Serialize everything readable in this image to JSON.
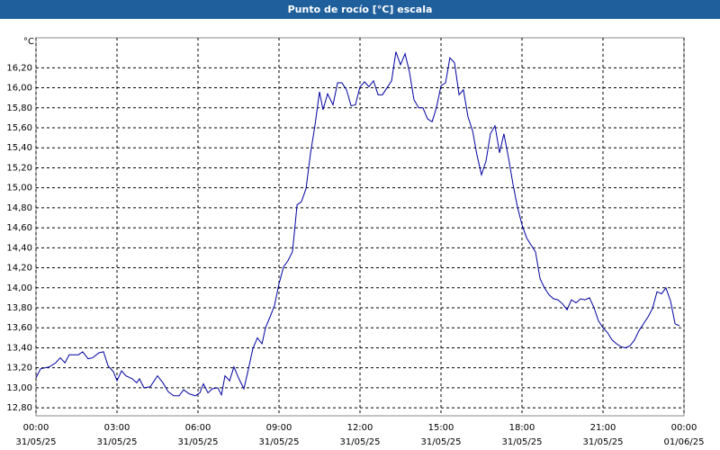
{
  "chart_data": {
    "type": "line",
    "title": "Punto de rocío [°C] escala",
    "y_label": "°C",
    "x": [
      0,
      0.17,
      0.5,
      0.73,
      0.9,
      1.07,
      1.23,
      1.57,
      1.73,
      1.93,
      2.1,
      2.33,
      2.5,
      2.67,
      2.87,
      3,
      3.17,
      3.33,
      3.57,
      3.73,
      3.83,
      4,
      4.23,
      4.5,
      4.7,
      4.9,
      5.1,
      5.3,
      5.47,
      5.67,
      5.9,
      6.07,
      6.2,
      6.37,
      6.53,
      6.73,
      6.87,
      7,
      7.17,
      7.33,
      7.5,
      7.7,
      7.87,
      8.03,
      8.2,
      8.37,
      8.5,
      8.67,
      8.83,
      9,
      9.17,
      9.33,
      9.5,
      9.67,
      9.83,
      10,
      10.17,
      10.33,
      10.5,
      10.63,
      10.8,
      11,
      11.17,
      11.33,
      11.5,
      11.67,
      11.83,
      12,
      12.17,
      12.33,
      12.5,
      12.67,
      12.83,
      13,
      13.17,
      13.33,
      13.5,
      13.67,
      13.83,
      14,
      14.17,
      14.33,
      14.5,
      14.67,
      14.83,
      15,
      15.17,
      15.33,
      15.5,
      15.67,
      15.83,
      16,
      16.17,
      16.33,
      16.5,
      16.67,
      16.83,
      17,
      17.17,
      17.33,
      17.5,
      17.67,
      17.83,
      18,
      18.17,
      18.33,
      18.5,
      18.67,
      18.83,
      19,
      19.17,
      19.33,
      19.5,
      19.67,
      19.83,
      20,
      20.17,
      20.33,
      20.5,
      20.67,
      20.83,
      21,
      21.17,
      21.33,
      21.5,
      21.67,
      21.83,
      22,
      22.17,
      22.33,
      22.5,
      22.67,
      22.83,
      23,
      23.17,
      23.33,
      23.5,
      23.67,
      23.83
    ],
    "series": [
      {
        "color": "#0000a0",
        "values": [
          13.1,
          13.19,
          13.21,
          13.25,
          13.3,
          13.25,
          13.33,
          13.33,
          13.36,
          13.29,
          13.3,
          13.35,
          13.36,
          13.22,
          13.16,
          13.07,
          13.17,
          13.12,
          13.09,
          13.05,
          13.09,
          13.0,
          13.01,
          13.12,
          13.05,
          12.96,
          12.92,
          12.92,
          12.98,
          12.94,
          12.92,
          12.95,
          13.04,
          12.95,
          12.99,
          13.0,
          12.93,
          13.12,
          13.07,
          13.21,
          13.1,
          12.99,
          13.19,
          13.39,
          13.5,
          13.44,
          13.6,
          13.71,
          13.82,
          14.04,
          14.21,
          14.27,
          14.36,
          14.83,
          14.86,
          14.99,
          15.35,
          15.62,
          15.96,
          15.78,
          15.94,
          15.83,
          16.05,
          16.05,
          15.98,
          15.82,
          15.83,
          16.01,
          16.06,
          16.01,
          16.07,
          15.93,
          15.93,
          16.0,
          16.07,
          16.36,
          16.23,
          16.34,
          16.16,
          15.88,
          15.8,
          15.8,
          15.69,
          15.66,
          15.8,
          16.02,
          16.05,
          16.3,
          16.25,
          15.93,
          15.98,
          15.71,
          15.57,
          15.33,
          15.13,
          15.27,
          15.54,
          15.62,
          15.35,
          15.54,
          15.3,
          15.03,
          14.81,
          14.63,
          14.5,
          14.43,
          14.36,
          14.09,
          14.0,
          13.93,
          13.89,
          13.88,
          13.84,
          13.78,
          13.88,
          13.85,
          13.89,
          13.88,
          13.9,
          13.8,
          13.67,
          13.6,
          13.55,
          13.48,
          13.44,
          13.41,
          13.4,
          13.42,
          13.48,
          13.57,
          13.64,
          13.71,
          13.79,
          13.96,
          13.94,
          14.0,
          13.87,
          13.64,
          13.62
        ]
      }
    ],
    "xlim": [
      0,
      24
    ],
    "xticks": [
      {
        "value": 0,
        "label": "00:00",
        "date": "31/05/25"
      },
      {
        "value": 3,
        "label": "03:00",
        "date": "31/05/25"
      },
      {
        "value": 6,
        "label": "06:00",
        "date": "31/05/25"
      },
      {
        "value": 9,
        "label": "09:00",
        "date": "31/05/25"
      },
      {
        "value": 12,
        "label": "12:00",
        "date": "31/05/25"
      },
      {
        "value": 15,
        "label": "15:00",
        "date": "31/05/25"
      },
      {
        "value": 18,
        "label": "18:00",
        "date": "31/05/25"
      },
      {
        "value": 21,
        "label": "21:00",
        "date": "31/05/25"
      },
      {
        "value": 24,
        "label": "00:00",
        "date": "01/06/25"
      }
    ],
    "ylim": [
      12.72,
      16.5
    ],
    "yticks": [
      {
        "value": 12.8,
        "label": "12,80"
      },
      {
        "value": 13,
        "label": "13,00"
      },
      {
        "value": 13.2,
        "label": "13,20"
      },
      {
        "value": 13.4,
        "label": "13,40"
      },
      {
        "value": 13.6,
        "label": "13,60"
      },
      {
        "value": 13.8,
        "label": "13,80"
      },
      {
        "value": 14,
        "label": "14,00"
      },
      {
        "value": 14.2,
        "label": "14,20"
      },
      {
        "value": 14.4,
        "label": "14,40"
      },
      {
        "value": 14.6,
        "label": "14,60"
      },
      {
        "value": 14.8,
        "label": "14,80"
      },
      {
        "value": 15,
        "label": "15,00"
      },
      {
        "value": 15.2,
        "label": "15,20"
      },
      {
        "value": 15.4,
        "label": "15,40"
      },
      {
        "value": 15.6,
        "label": "15,60"
      },
      {
        "value": 15.8,
        "label": "15,80"
      },
      {
        "value": 16,
        "label": "16,00"
      },
      {
        "value": 16.2,
        "label": "16,20"
      }
    ],
    "grid": true
  }
}
